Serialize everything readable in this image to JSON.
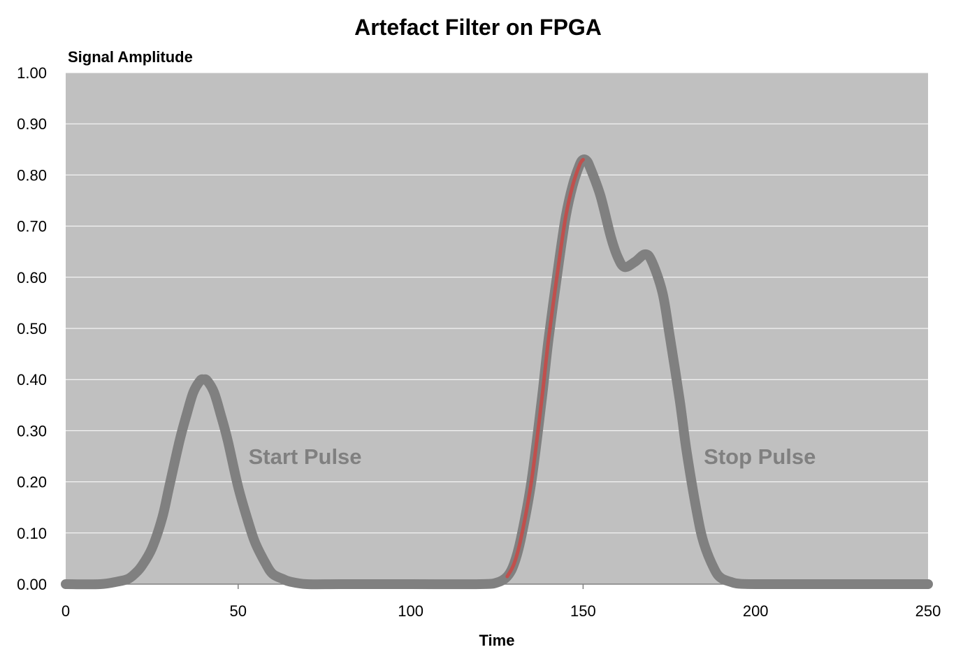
{
  "chart_data": {
    "type": "line",
    "title": "Artefact Filter on FPGA",
    "ylabel": "Signal Amplitude",
    "xlabel": "Time",
    "xlim": [
      0,
      250
    ],
    "ylim": [
      0,
      1
    ],
    "x_ticks": [
      "0",
      "50",
      "100",
      "150",
      "200",
      "250"
    ],
    "x_tick_values": [
      0,
      50,
      100,
      150,
      200,
      250
    ],
    "y_ticks": [
      "0.00",
      "0.10",
      "0.20",
      "0.30",
      "0.40",
      "0.50",
      "0.60",
      "0.70",
      "0.80",
      "0.90",
      "1.00"
    ],
    "y_tick_values": [
      0,
      0.1,
      0.2,
      0.3,
      0.4,
      0.5,
      0.6,
      0.7,
      0.8,
      0.9,
      1.0
    ],
    "grid": true,
    "legend": "none",
    "plot_background": "#c0c0c0",
    "series": [
      {
        "color": "#808080",
        "x": [
          0,
          10,
          15,
          18,
          20,
          22,
          25,
          28,
          30,
          33,
          35,
          37,
          39,
          40,
          41,
          43,
          45,
          47,
          50,
          53,
          55,
          58,
          60,
          63,
          65,
          70,
          80,
          100,
          120,
          125,
          128,
          130,
          132,
          135,
          138,
          140,
          143,
          145,
          147,
          149,
          150,
          151,
          152,
          155,
          158,
          160,
          162,
          165,
          168,
          170,
          173,
          175,
          178,
          180,
          183,
          185,
          188,
          190,
          193,
          195,
          200,
          220,
          250
        ],
        "y": [
          0.0,
          0.0,
          0.005,
          0.01,
          0.02,
          0.035,
          0.07,
          0.13,
          0.19,
          0.28,
          0.33,
          0.375,
          0.398,
          0.4,
          0.398,
          0.375,
          0.33,
          0.28,
          0.19,
          0.12,
          0.08,
          0.04,
          0.02,
          0.01,
          0.005,
          0.0,
          0.0,
          0.0,
          0.0,
          0.003,
          0.015,
          0.04,
          0.09,
          0.2,
          0.36,
          0.48,
          0.63,
          0.72,
          0.78,
          0.82,
          0.83,
          0.828,
          0.815,
          0.76,
          0.68,
          0.64,
          0.62,
          0.63,
          0.645,
          0.63,
          0.57,
          0.49,
          0.36,
          0.26,
          0.14,
          0.08,
          0.03,
          0.012,
          0.004,
          0.001,
          0.0,
          0.0,
          0.0
        ]
      },
      {
        "color": "#c0504d",
        "x": [
          128,
          130,
          132,
          135,
          138,
          140,
          143,
          145,
          147,
          149,
          150
        ],
        "y": [
          0.015,
          0.04,
          0.09,
          0.2,
          0.36,
          0.48,
          0.63,
          0.72,
          0.78,
          0.82,
          0.83
        ]
      }
    ],
    "annotations": [
      {
        "text": "Start Pulse",
        "x": 53,
        "y": 0.25,
        "color": "#808080"
      },
      {
        "text": "Stop Pulse",
        "x": 185,
        "y": 0.25,
        "color": "#808080"
      }
    ]
  }
}
